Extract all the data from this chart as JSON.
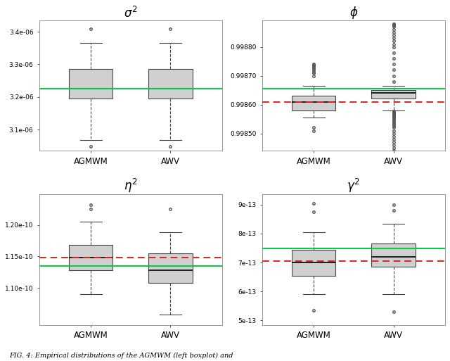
{
  "title_sigma": "$\\sigma^2$",
  "title_phi": "$\\phi$",
  "title_eta": "$\\eta^2$",
  "title_gamma": "$\\gamma^2$",
  "caption": "FIG. 4: Empirical distributions of the AGMWM (left boxplot) and",
  "sigma_agmwm": {
    "whislo": 3.068e-06,
    "q1": 3.195e-06,
    "med": 3.225e-06,
    "q3": 3.285e-06,
    "whishi": 3.365e-06,
    "fliers_lo": [
      3.048e-06
    ],
    "fliers_hi": [
      3.408e-06
    ]
  },
  "sigma_awv": {
    "whislo": 3.068e-06,
    "q1": 3.195e-06,
    "med": 3.225e-06,
    "q3": 3.285e-06,
    "whishi": 3.365e-06,
    "fliers_lo": [
      3.048e-06
    ],
    "fliers_hi": [
      3.408e-06
    ]
  },
  "sigma_true_green": 3.225e-06,
  "sigma_true_red": null,
  "sigma_ylim": [
    3.035e-06,
    3.435e-06
  ],
  "sigma_yticks": [
    3.1e-06,
    3.2e-06,
    3.3e-06,
    3.4e-06
  ],
  "sigma_yticklabels": [
    "3.1e-06",
    "3.2e-06",
    "3.3e-06",
    "3.4e-06"
  ],
  "phi_agmwm": {
    "whislo": 0.998555,
    "q1": 0.99858,
    "med": 0.998608,
    "q3": 0.99863,
    "whishi": 0.998665,
    "fliers_lo": [
      0.99852,
      0.99851
    ],
    "fliers_hi": [
      0.9987,
      0.99871,
      0.998715,
      0.99872,
      0.998725,
      0.99873,
      0.998735,
      0.998738,
      0.99874
    ]
  },
  "phi_awv": {
    "whislo": 0.99858,
    "q1": 0.99862,
    "med": 0.99864,
    "q3": 0.99865,
    "whishi": 0.998665,
    "fliers_lo": [
      0.99844,
      0.99845,
      0.99846,
      0.99847,
      0.99848,
      0.99849,
      0.9985,
      0.99851,
      0.99852,
      0.998525,
      0.99853,
      0.998535,
      0.99854,
      0.998545,
      0.99855,
      0.998555,
      0.998558,
      0.998561,
      0.998564,
      0.998567,
      0.99857,
      0.998572,
      0.998574,
      0.998576,
      0.998577,
      0.998578
    ],
    "fliers_hi": [
      0.99868,
      0.9987,
      0.99872,
      0.99874,
      0.99876,
      0.99878,
      0.9988,
      0.99881,
      0.99882,
      0.99883,
      0.99884,
      0.99885,
      0.99886,
      0.99887,
      0.998875,
      0.998878,
      0.998879,
      0.99888
    ]
  },
  "phi_true_green": 0.998655,
  "phi_true_red": 0.998608,
  "phi_ylim": [
    0.99844,
    0.998892
  ],
  "phi_yticks": [
    0.9985,
    0.9986,
    0.9987,
    0.9988
  ],
  "phi_yticklabels": [
    "0.99850",
    "0.99860",
    "0.99870",
    "0.99880"
  ],
  "eta_agmwm": {
    "whislo": 1.09e-10,
    "q1": 1.128e-10,
    "med": 1.148e-10,
    "q3": 1.168e-10,
    "whishi": 1.205e-10,
    "fliers_lo": [],
    "fliers_hi": [
      1.225e-10,
      1.232e-10
    ]
  },
  "eta_awv": {
    "whislo": 1.058e-10,
    "q1": 1.108e-10,
    "med": 1.128e-10,
    "q3": 1.155e-10,
    "whishi": 1.188e-10,
    "fliers_lo": [],
    "fliers_hi": [
      1.225e-10
    ]
  },
  "eta_true_green": 1.135e-10,
  "eta_true_red": 1.148e-10,
  "eta_ylim": [
    1.042e-10,
    1.248e-10
  ],
  "eta_yticks": [
    1.1e-10,
    1.15e-10,
    1.2e-10
  ],
  "eta_yticklabels": [
    "1.10e-10",
    "1.15e-10",
    "1.20e-10"
  ],
  "gamma_agmwm": {
    "whislo": 5.9e-13,
    "q1": 6.55e-13,
    "med": 7e-13,
    "q3": 7.45e-13,
    "whishi": 8.05e-13,
    "fliers_lo": [
      5.35e-13
    ],
    "fliers_hi": [
      8.75e-13,
      9.05e-13
    ]
  },
  "gamma_awv": {
    "whislo": 5.9e-13,
    "q1": 6.85e-13,
    "med": 7.2e-13,
    "q3": 7.65e-13,
    "whishi": 8.35e-13,
    "fliers_lo": [
      5.3e-13
    ],
    "fliers_hi": [
      8.8e-13,
      9e-13
    ]
  },
  "gamma_true_green": 7.5e-13,
  "gamma_true_red": 7.05e-13,
  "gamma_ylim": [
    4.85e-13,
    9.35e-13
  ],
  "gamma_yticks": [
    5e-13,
    6e-13,
    7e-13,
    8e-13,
    9e-13
  ],
  "gamma_yticklabels": [
    "5e-13",
    "6e-13",
    "7e-13",
    "8e-13",
    "9e-13"
  ],
  "box_facecolor": "#d0d0d0",
  "box_edgecolor": "#444444",
  "median_color": "black",
  "whisker_color": "#444444",
  "flier_markeredgecolor": "#555555",
  "green_color": "#00cc44",
  "red_color": "#dd2222"
}
